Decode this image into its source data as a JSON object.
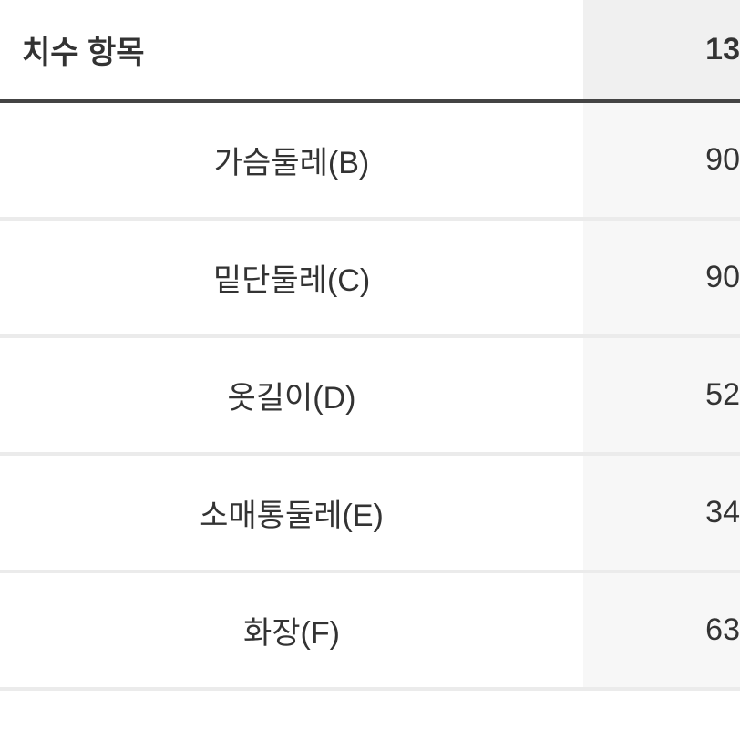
{
  "table": {
    "header": {
      "label": "치수 항목",
      "size": "13"
    },
    "rows": [
      {
        "label": "가슴둘레(B)",
        "value": "90"
      },
      {
        "label": "밑단둘레(C)",
        "value": "90"
      },
      {
        "label": "옷길이(D)",
        "value": "52"
      },
      {
        "label": "소매통둘레(E)",
        "value": "34"
      },
      {
        "label": "화장(F)",
        "value": "63"
      }
    ],
    "colors": {
      "background": "#ffffff",
      "value_bg": "#f7f7f7",
      "header_value_bg": "#f0f0f0",
      "border_heavy": "#444444",
      "border_light": "#ebebeb",
      "text": "#333333"
    },
    "typography": {
      "header_fontsize": 34,
      "header_fontweight": 700,
      "cell_fontsize": 34,
      "cell_fontweight": 400
    }
  }
}
